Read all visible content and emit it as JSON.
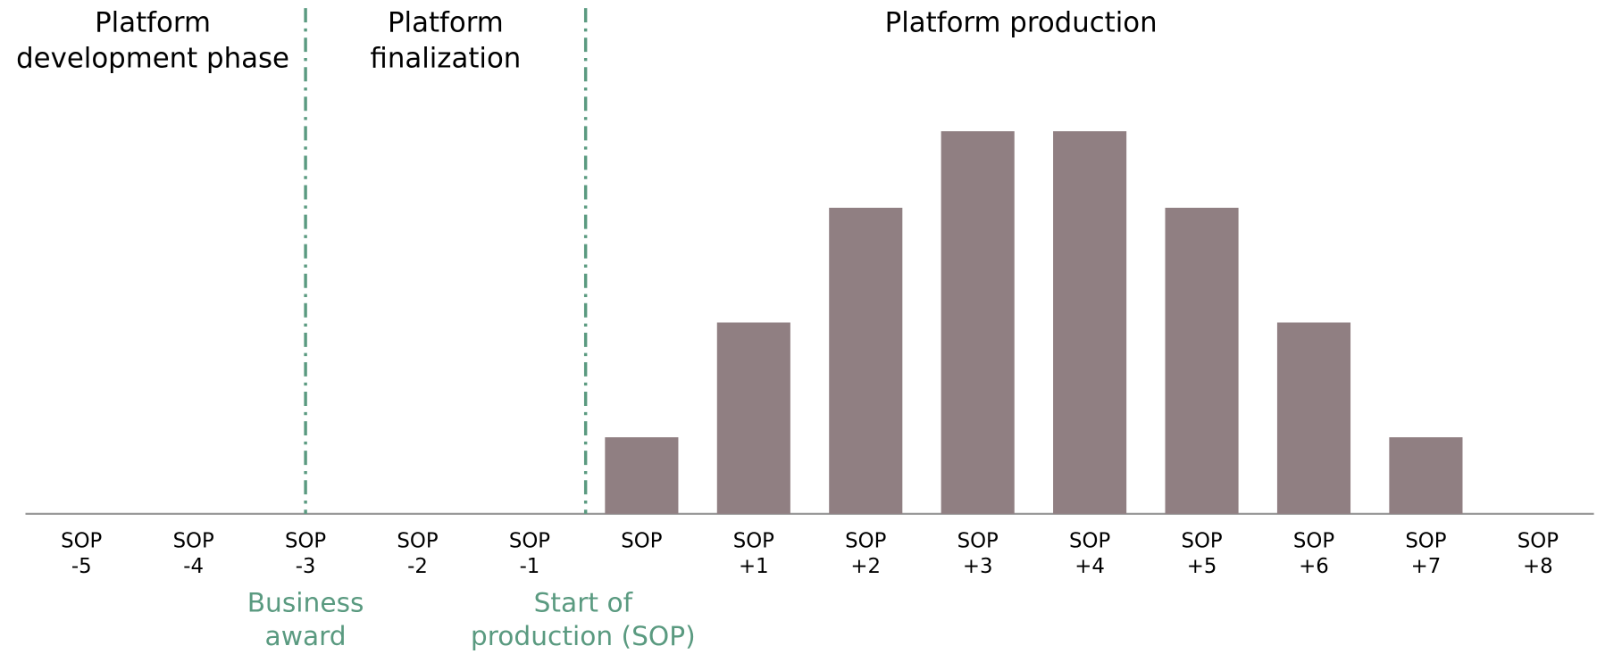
{
  "chart_data": {
    "type": "bar",
    "categories": [
      "SOP -5",
      "SOP -4",
      "SOP -3",
      "SOP -2",
      "SOP -1",
      "SOP",
      "SOP +1",
      "SOP +2",
      "SOP +3",
      "SOP +4",
      "SOP +5",
      "SOP +6",
      "SOP +7",
      "SOP +8"
    ],
    "values": [
      0,
      0,
      0,
      0,
      0,
      1,
      2.5,
      4,
      5,
      5,
      4,
      2.5,
      1,
      0
    ],
    "color": "#907f82",
    "phases": [
      "Platform\ndevelopment phase",
      "Platform\nfinalization",
      "Platform production"
    ],
    "milestones": [
      "Business\naward",
      "Start of\nproduction (SOP)"
    ],
    "milestone_color": "#5a9a80"
  }
}
